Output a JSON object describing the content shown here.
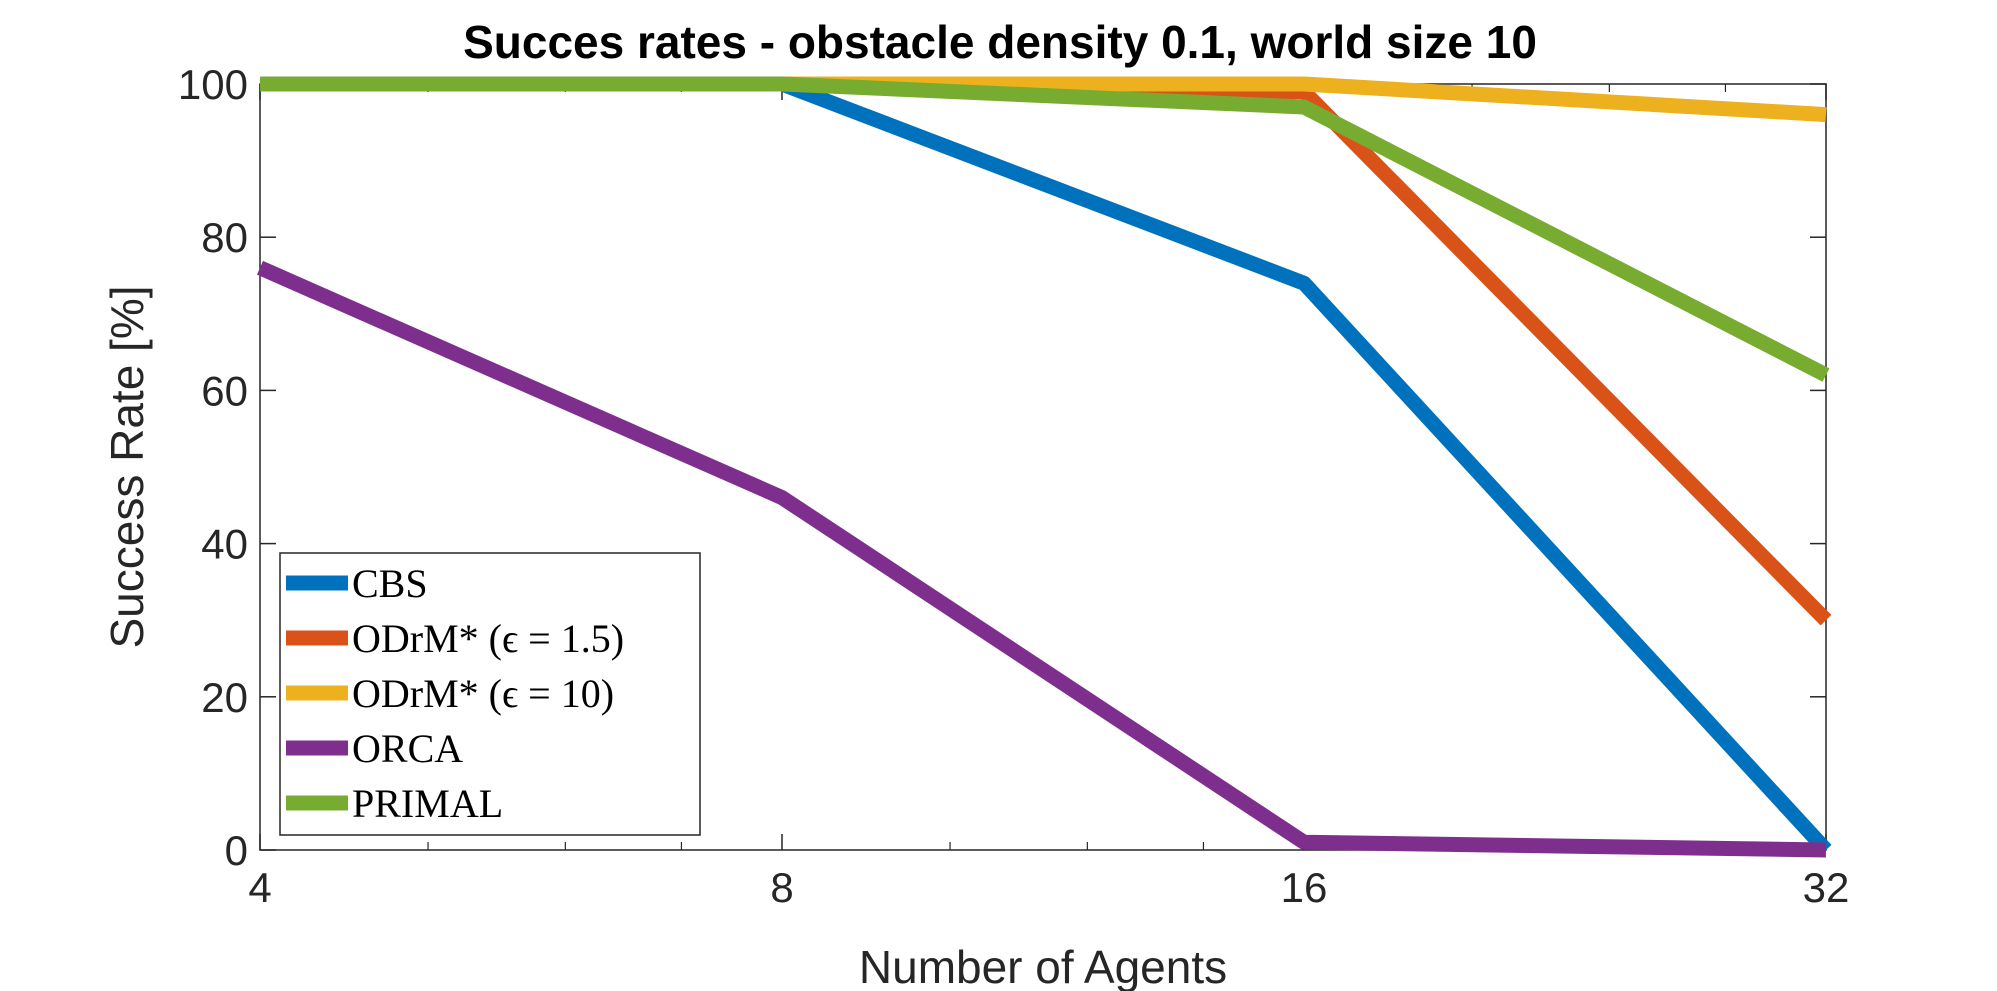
{
  "chart_data": {
    "type": "line",
    "title": "Succes rates - obstacle density 0.1, world size 10",
    "xlabel": "Number of Agents",
    "ylabel": "Success Rate [%]",
    "x": [
      4,
      8,
      16,
      32
    ],
    "x_scale": "log2",
    "xlim": [
      4,
      32
    ],
    "ylim": [
      0,
      100
    ],
    "xticks": [
      "4",
      "8",
      "16",
      "32"
    ],
    "yticks": [
      0,
      20,
      40,
      60,
      80,
      100
    ],
    "grid": false,
    "legend_position": "bottom-left",
    "series": [
      {
        "name": "CBS",
        "color": "#0072BD",
        "values": [
          100,
          100,
          74,
          0
        ]
      },
      {
        "name": "ODrM* (ϵ = 1.5)",
        "color": "#D95319",
        "values": [
          100,
          100,
          99,
          30
        ]
      },
      {
        "name": "ODrM* (ϵ = 10)",
        "color": "#EDB120",
        "values": [
          100,
          100,
          100,
          96
        ]
      },
      {
        "name": "ORCA",
        "color": "#7E2F8E",
        "values": [
          76,
          46,
          1,
          0
        ]
      },
      {
        "name": "PRIMAL",
        "color": "#77AC30",
        "values": [
          100,
          100,
          97,
          62
        ]
      }
    ]
  }
}
